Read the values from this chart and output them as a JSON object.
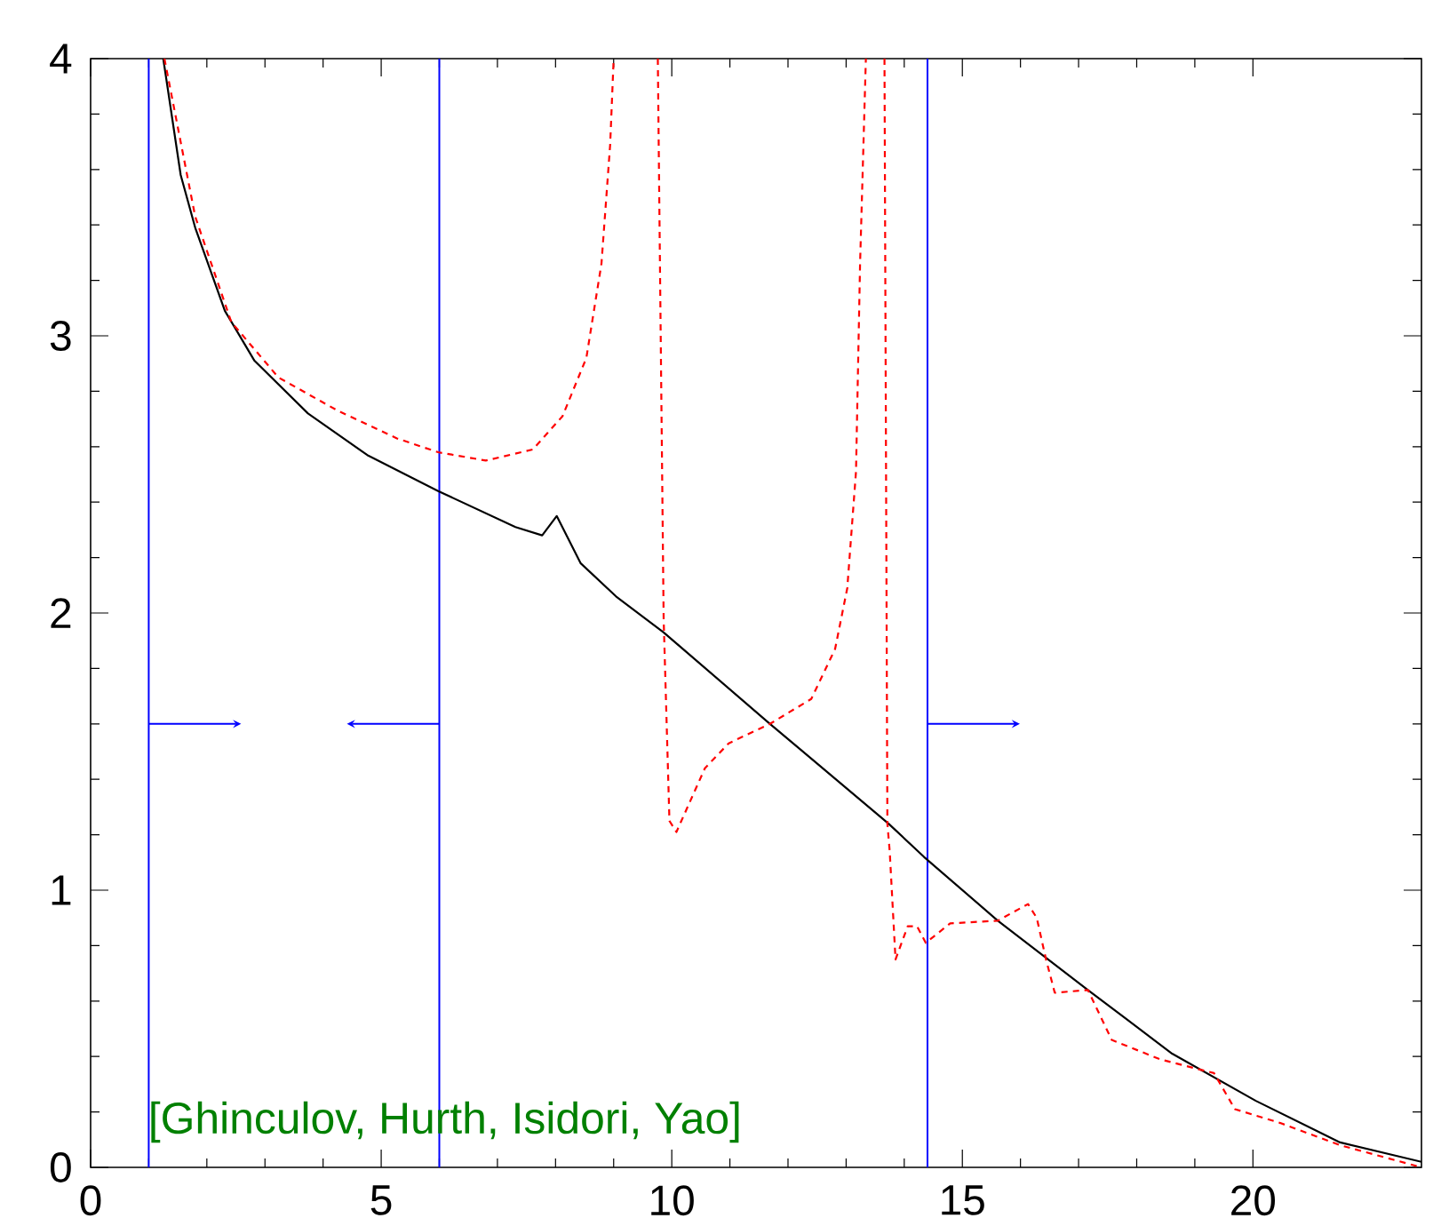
{
  "chart_data": {
    "type": "line",
    "xlim": [
      0,
      22.9
    ],
    "ylim": [
      0,
      4
    ],
    "xticks": [
      0,
      5,
      10,
      15,
      20
    ],
    "yticks": [
      0,
      1,
      2,
      3,
      4
    ],
    "grid": false,
    "series": [
      {
        "color": "#000000",
        "line_style": "solid",
        "x": [
          1.25,
          1.55,
          1.8,
          2.31,
          2.82,
          3.74,
          4.76,
          5.98,
          7.31,
          7.77,
          8.02,
          8.43,
          9.04,
          9.86,
          11.69,
          12.2,
          13.73,
          14.34,
          15.61,
          17.16,
          18.61,
          20.05,
          21.5,
          22.9
        ],
        "values": [
          4,
          3.58,
          3.39,
          3.09,
          2.91,
          2.72,
          2.57,
          2.44,
          2.31,
          2.28,
          2.35,
          2.18,
          2.06,
          1.93,
          1.6,
          1.51,
          1.24,
          1.12,
          0.89,
          0.64,
          0.41,
          0.24,
          0.09,
          0.02
        ]
      },
      {
        "color": "#ff0000",
        "line_style": "dashed",
        "x": [
          1.27,
          1.8,
          2.42,
          3.23,
          4.25,
          5.27,
          5.98,
          6.8,
          7.61,
          8.12,
          8.53,
          8.79,
          8.94,
          9.0,
          9.3,
          9.76,
          9.86,
          9.96,
          10.08,
          10.57,
          10.98,
          11.69,
          12.4,
          12.81,
          13.02,
          13.17,
          13.24,
          13.34,
          13.5,
          13.66,
          13.71,
          13.75,
          13.85,
          14.06,
          14.22,
          14.37,
          14.79,
          15.61,
          16.13,
          16.28,
          16.44,
          16.59,
          17.16,
          17.57,
          18.4,
          19.33,
          19.69,
          20.47,
          21.5,
          22.9
        ],
        "values": [
          4,
          3.43,
          3.05,
          2.85,
          2.73,
          2.63,
          2.58,
          2.55,
          2.59,
          2.71,
          2.92,
          3.26,
          3.69,
          4,
          null,
          4,
          1.98,
          1.25,
          1.21,
          1.44,
          1.53,
          1.6,
          1.69,
          1.87,
          2.09,
          2.51,
          3.26,
          4,
          null,
          4,
          1.24,
          1.14,
          0.75,
          0.87,
          0.87,
          0.81,
          0.88,
          0.89,
          0.95,
          0.9,
          0.75,
          0.63,
          0.64,
          0.46,
          0.39,
          0.34,
          0.21,
          0.16,
          0.08,
          0.0
        ]
      }
    ],
    "ref_lines": [
      {
        "axis": "x",
        "value": 1,
        "color": "#0000ff"
      },
      {
        "axis": "x",
        "value": 6,
        "color": "#0000ff"
      },
      {
        "axis": "x",
        "value": 14.4,
        "color": "#0000ff"
      }
    ],
    "annotations": [
      "[Ghinculov, Hurth, Isidori, Yao]"
    ]
  }
}
